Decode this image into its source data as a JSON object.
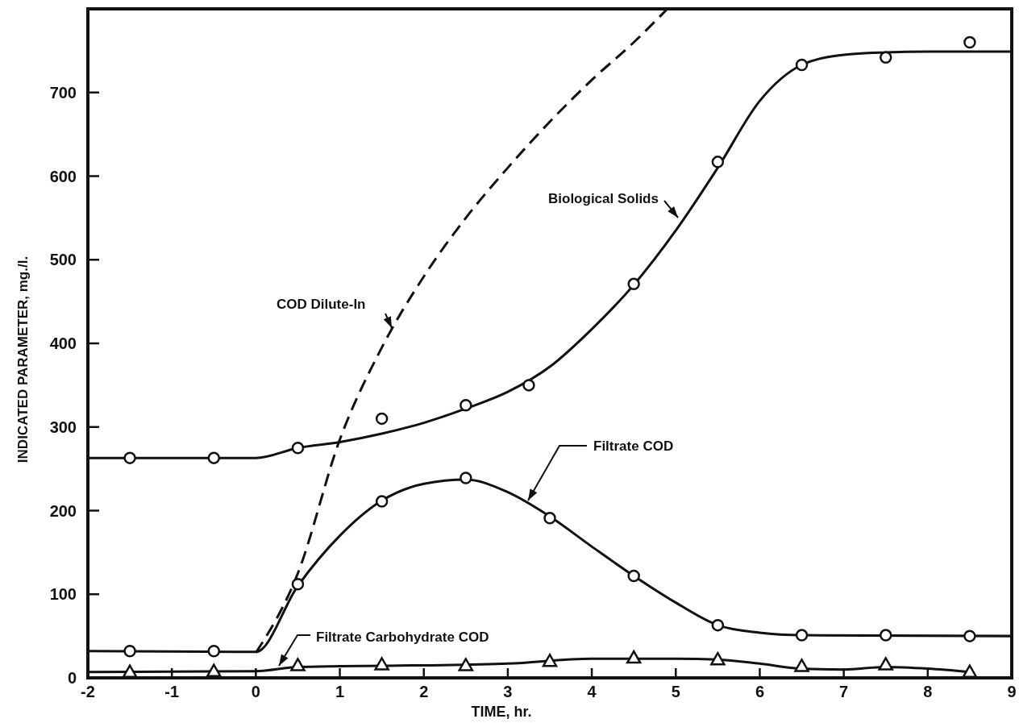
{
  "chart_data": {
    "type": "line",
    "xlabel": "TIME, hr.",
    "ylabel": "INDICATED PARAMETER, mg./l.",
    "xlim": [
      -2,
      9
    ],
    "xticks": [
      -2,
      -1,
      0,
      1,
      2,
      3,
      4,
      5,
      6,
      7,
      8,
      9
    ],
    "ylim": [
      0,
      800
    ],
    "yticks": [
      0,
      100,
      200,
      300,
      400,
      500,
      600,
      700
    ],
    "grid": false,
    "series": [
      {
        "name": "COD Dilute-In",
        "color": "#111111",
        "line_style": "dashed",
        "x": [
          0,
          0.5,
          1,
          1.5,
          2,
          2.5,
          3,
          3.5,
          4,
          4.5,
          4.9
        ],
        "values": [
          30,
          125,
          285,
          395,
          480,
          550,
          610,
          665,
          715,
          760,
          800
        ]
      },
      {
        "name": "Biological Solids",
        "color": "#111111",
        "line_style": "solid",
        "x": [
          -2,
          0,
          0.5,
          1,
          1.5,
          2,
          2.5,
          3,
          3.5,
          4,
          4.5,
          5,
          5.5,
          6,
          6.5,
          7,
          7.5,
          8,
          9
        ],
        "values": [
          263,
          263,
          275,
          282,
          292,
          305,
          322,
          342,
          372,
          417,
          470,
          535,
          610,
          690,
          733,
          745,
          748,
          749,
          749
        ]
      },
      {
        "name": "Filtrate COD",
        "color": "#111111",
        "line_style": "solid",
        "x": [
          -2,
          0,
          0.5,
          1,
          1.5,
          2,
          2.5,
          3,
          3.5,
          4,
          4.5,
          5,
          5.5,
          6,
          6.5,
          9
        ],
        "values": [
          32,
          31,
          110,
          170,
          212,
          232,
          237,
          222,
          193,
          157,
          122,
          90,
          63,
          54,
          51,
          50
        ]
      },
      {
        "name": "Filtrate Carbohydrate COD",
        "color": "#111111",
        "line_style": "solid",
        "x": [
          -2,
          0,
          0.5,
          1,
          2,
          3,
          4,
          5,
          5.5,
          6,
          6.5,
          7,
          7.5,
          8,
          8.5
        ],
        "values": [
          7,
          8,
          13,
          14,
          15,
          17,
          23,
          23,
          22,
          17,
          11,
          10,
          13,
          11,
          7
        ]
      },
      {
        "type": "scatter",
        "marker": "circle",
        "color": "#111111",
        "x": [
          -1.5,
          -0.5,
          0.5,
          1.5,
          2.5,
          3.25,
          4.5,
          5.5,
          6.5,
          7.5,
          8.5
        ],
        "values": [
          263,
          263,
          275,
          310,
          326,
          350,
          471,
          617,
          733,
          742,
          760
        ]
      },
      {
        "type": "scatter",
        "marker": "circle",
        "color": "#111111",
        "x": [
          -1.5,
          -0.5,
          0.5,
          1.5,
          2.5,
          3.5,
          4.5,
          5.5,
          6.5,
          7.5,
          8.5
        ],
        "values": [
          32,
          32,
          112,
          211,
          239,
          191,
          122,
          63,
          51,
          51,
          50
        ]
      },
      {
        "type": "scatter",
        "marker": "triangle",
        "color": "#111111",
        "x": [
          -1.5,
          -0.5,
          0.5,
          1.5,
          2.5,
          3.5,
          4.5,
          5.5,
          6.5,
          7.5,
          8.5
        ],
        "values": [
          7,
          8,
          15,
          16,
          15,
          20,
          24,
          22,
          14,
          16,
          7
        ]
      }
    ]
  }
}
